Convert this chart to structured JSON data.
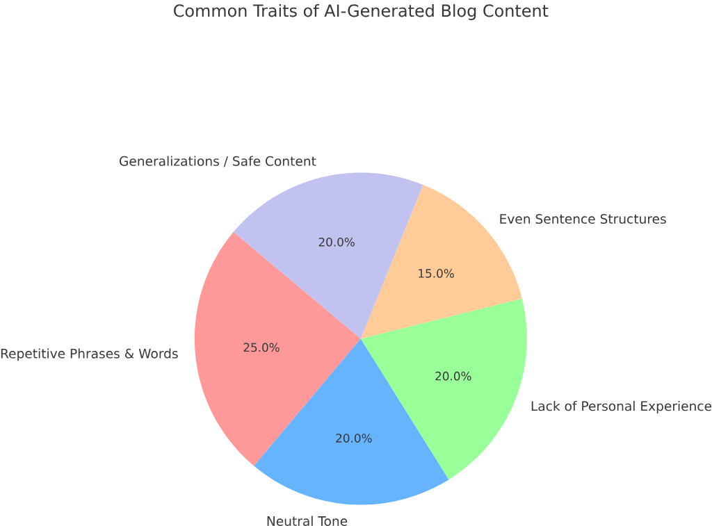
{
  "chart_data": {
    "type": "pie",
    "title": "Common Traits of AI-Generated Blog Content",
    "categories": [
      "Repetitive Phrases & Words",
      "Neutral Tone",
      "Lack of Personal Experience",
      "Even Sentence Structures",
      "Generalizations / Safe Content"
    ],
    "values": [
      25,
      20,
      20,
      15,
      20
    ],
    "colors": [
      "#ff9999",
      "#66b3ff",
      "#99ff99",
      "#ffcc99",
      "#c2c2f0"
    ],
    "value_labels": [
      "25.0%",
      "20.0%",
      "20.0%",
      "15.0%",
      "20.0%"
    ]
  }
}
